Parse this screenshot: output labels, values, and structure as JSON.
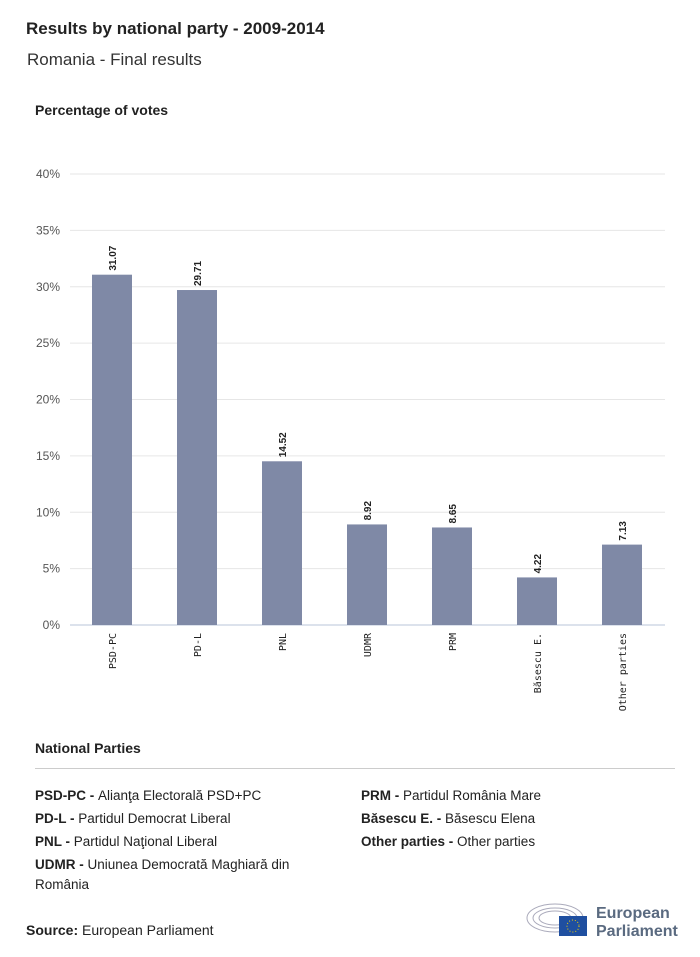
{
  "header": {
    "title": "Results by national party - 2009-2014",
    "subtitle": "Romania - Final results"
  },
  "chart_data": {
    "type": "bar",
    "ylabel": "Percentage of votes",
    "categories": [
      "PSD-PC",
      "PD-L",
      "PNL",
      "UDMR",
      "PRM",
      "Băsescu E.",
      "Other parties"
    ],
    "values": [
      31.07,
      29.71,
      14.52,
      8.92,
      8.65,
      4.22,
      7.13
    ],
    "data_labels": [
      "31.07",
      "29.71",
      "14.52",
      "8.92",
      "8.65",
      "4.22",
      "7.13"
    ],
    "ylim": [
      0,
      40
    ],
    "yticks": [
      "0%",
      "5%",
      "10%",
      "15%",
      "20%",
      "25%",
      "30%",
      "35%",
      "40%"
    ],
    "grid": true,
    "bar_color": "#7f89a6"
  },
  "legend": {
    "title": "National Parties",
    "items": [
      {
        "abbr": "PSD-PC",
        "name": "Alianţa Electorală PSD+PC"
      },
      {
        "abbr": "PD-L",
        "name": "Partidul Democrat Liberal"
      },
      {
        "abbr": "PNL",
        "name": "Partidul Naţional Liberal"
      },
      {
        "abbr": "UDMR",
        "name": "Uniunea Democrată Maghiară din România"
      },
      {
        "abbr": "PRM",
        "name": "Partidul România Mare"
      },
      {
        "abbr": "Băsescu E.",
        "name": "Băsescu Elena"
      },
      {
        "abbr": "Other parties",
        "name": "Other parties"
      }
    ]
  },
  "footer": {
    "source_label": "Source:",
    "source": "European Parliament",
    "logo_line1": "European",
    "logo_line2": "Parliament"
  }
}
